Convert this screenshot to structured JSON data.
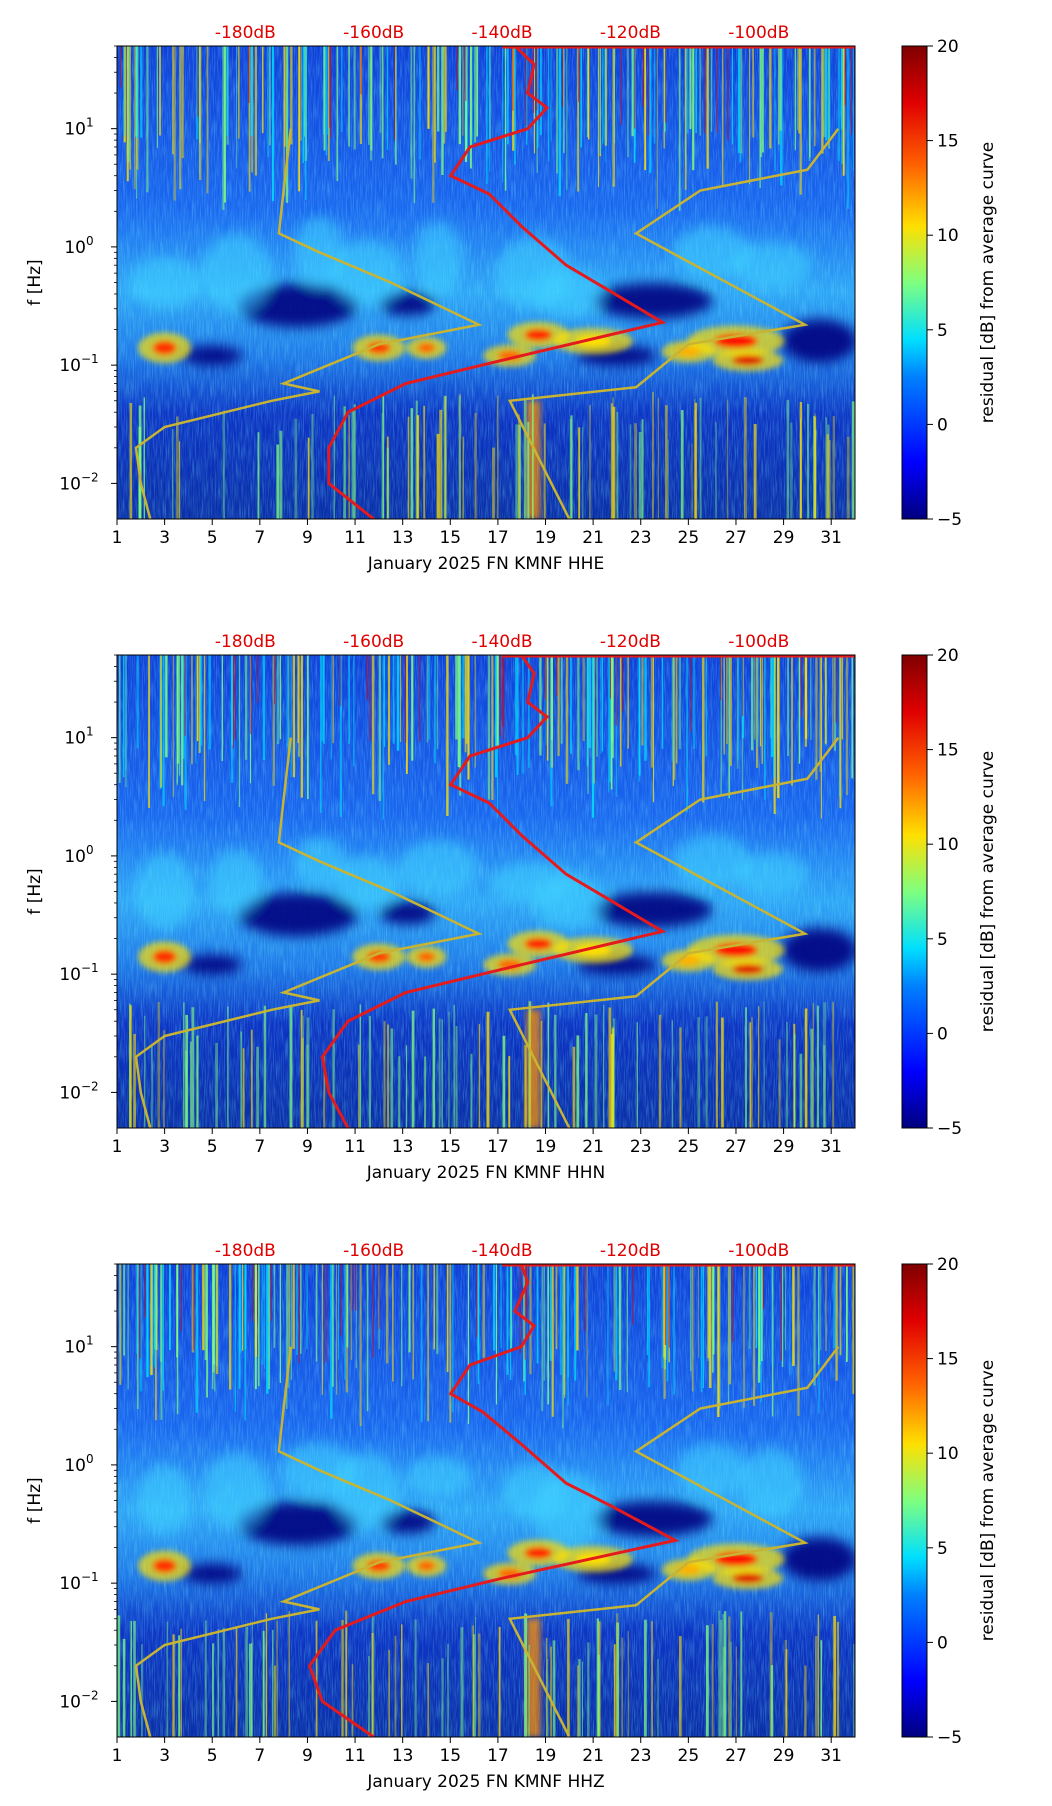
{
  "chart_data": [
    {
      "type": "heatmap",
      "xlabel": "January 2025 FN KMNF  HHE",
      "ylabel": "f [Hz]",
      "colorbar_label": "residual [dB] from average curve",
      "xlim": [
        1,
        32
      ],
      "ylim_log": [
        0.005,
        50
      ],
      "clim": [
        -5,
        20
      ],
      "x_ticks": [
        "1",
        "3",
        "5",
        "7",
        "9",
        "11",
        "13",
        "15",
        "17",
        "19",
        "21",
        "23",
        "25",
        "27",
        "29",
        "31"
      ],
      "y_ticks": [
        "10^-2",
        "10^-1",
        "10^0",
        "10^1"
      ],
      "db_ticks": [
        "-180dB",
        "-160dB",
        "-140dB",
        "-120dB",
        "-100dB"
      ],
      "colorbar_ticks": [
        "−5",
        "0",
        "5",
        "10",
        "15",
        "20"
      ],
      "scale": "log-frequency",
      "colormap": "jet",
      "series": [
        {
          "color": "#e41a1c",
          "db": [
            -138,
            -135,
            -136,
            -133,
            -136,
            -145,
            -148,
            -142,
            -137,
            -130,
            -124,
            -115,
            -140,
            -155,
            -164,
            -167,
            -167,
            -160
          ],
          "f": [
            50,
            35,
            20,
            15,
            10,
            7,
            4,
            2.8,
            1.5,
            0.7,
            0.45,
            0.23,
            0.11,
            0.07,
            0.04,
            0.02,
            0.01,
            0.005
          ]
        },
        {
          "color": "#c8b432",
          "day": [
            8.3,
            8.0,
            7.8,
            9.5,
            12.5,
            16.2,
            12,
            8.0,
            9.5,
            7.5,
            3.0,
            1.8,
            2.0,
            2.4
          ],
          "f": [
            10,
            3,
            1.3,
            0.9,
            0.5,
            0.22,
            0.15,
            0.07,
            0.06,
            0.05,
            0.03,
            0.02,
            0.01,
            0.005
          ]
        },
        {
          "color": "#c8b432",
          "day": [
            31.3,
            30,
            25.5,
            22.8,
            29.9,
            25,
            22.8,
            17.5,
            20
          ],
          "f": [
            10,
            4.5,
            3,
            1.3,
            0.22,
            0.15,
            0.065,
            0.05,
            0.005
          ]
        }
      ]
    },
    {
      "type": "heatmap",
      "xlabel": "January 2025 FN KMNF  HHN",
      "ylabel": "f [Hz]",
      "colorbar_label": "residual [dB] from average curve",
      "xlim": [
        1,
        32
      ],
      "ylim_log": [
        0.005,
        50
      ],
      "clim": [
        -5,
        20
      ],
      "x_ticks": [
        "1",
        "3",
        "5",
        "7",
        "9",
        "11",
        "13",
        "15",
        "17",
        "19",
        "21",
        "23",
        "25",
        "27",
        "29",
        "31"
      ],
      "y_ticks": [
        "10^-2",
        "10^-1",
        "10^0",
        "10^1"
      ],
      "db_ticks": [
        "-180dB",
        "-160dB",
        "-140dB",
        "-120dB",
        "-100dB"
      ],
      "colorbar_ticks": [
        "−5",
        "0",
        "5",
        "10",
        "15",
        "20"
      ],
      "scale": "log-frequency",
      "colormap": "jet",
      "series": [
        {
          "color": "#e41a1c",
          "db": [
            -137,
            -135,
            -136,
            -133,
            -136,
            -145,
            -148,
            -142,
            -137,
            -130,
            -124,
            -115,
            -140,
            -155,
            -164,
            -168,
            -167,
            -164
          ],
          "f": [
            50,
            35,
            20,
            15,
            10,
            7,
            4,
            2.8,
            1.5,
            0.7,
            0.45,
            0.23,
            0.11,
            0.07,
            0.04,
            0.02,
            0.01,
            0.005
          ]
        },
        {
          "color": "#c8b432",
          "day": [
            8.3,
            8.0,
            7.8,
            9.5,
            12.5,
            16.2,
            12,
            8.0,
            9.5,
            7.5,
            3.0,
            1.8,
            2.0,
            2.4
          ],
          "f": [
            10,
            3,
            1.3,
            0.9,
            0.5,
            0.22,
            0.15,
            0.07,
            0.06,
            0.05,
            0.03,
            0.02,
            0.01,
            0.005
          ]
        },
        {
          "color": "#c8b432",
          "day": [
            31.3,
            30,
            25.5,
            22.8,
            29.9,
            25,
            22.8,
            17.5,
            20
          ],
          "f": [
            10,
            4.5,
            3,
            1.3,
            0.22,
            0.15,
            0.065,
            0.05,
            0.005
          ]
        }
      ]
    },
    {
      "type": "heatmap",
      "xlabel": "January 2025 FN KMNF  HHZ",
      "ylabel": "f [Hz]",
      "colorbar_label": "residual [dB] from average curve",
      "xlim": [
        1,
        32
      ],
      "ylim_log": [
        0.005,
        50
      ],
      "clim": [
        -5,
        20
      ],
      "x_ticks": [
        "1",
        "3",
        "5",
        "7",
        "9",
        "11",
        "13",
        "15",
        "17",
        "19",
        "21",
        "23",
        "25",
        "27",
        "29",
        "31"
      ],
      "y_ticks": [
        "10^-2",
        "10^-1",
        "10^0",
        "10^1"
      ],
      "db_ticks": [
        "-180dB",
        "-160dB",
        "-140dB",
        "-120dB",
        "-100dB"
      ],
      "colorbar_ticks": [
        "−5",
        "0",
        "5",
        "10",
        "15",
        "20"
      ],
      "scale": "log-frequency",
      "colormap": "jet",
      "series": [
        {
          "color": "#e41a1c",
          "db": [
            -137,
            -136,
            -138,
            -135,
            -137,
            -145,
            -148,
            -143,
            -137,
            -130,
            -123,
            -113,
            -140,
            -155,
            -166,
            -170,
            -168,
            -160
          ],
          "f": [
            50,
            35,
            20,
            15,
            10,
            7,
            4,
            2.8,
            1.5,
            0.7,
            0.45,
            0.23,
            0.11,
            0.07,
            0.04,
            0.02,
            0.01,
            0.005
          ]
        },
        {
          "color": "#c8b432",
          "day": [
            8.3,
            8.0,
            7.8,
            9.5,
            12.5,
            16.2,
            12,
            8.0,
            9.5,
            7.5,
            3.0,
            1.8,
            2.0,
            2.4
          ],
          "f": [
            10,
            3,
            1.3,
            0.9,
            0.5,
            0.22,
            0.15,
            0.07,
            0.06,
            0.05,
            0.03,
            0.02,
            0.01,
            0.005
          ]
        },
        {
          "color": "#c8b432",
          "day": [
            31.3,
            30,
            25.5,
            22.8,
            29.9,
            25,
            22.8,
            17.5,
            20
          ],
          "f": [
            10,
            4.5,
            3,
            1.3,
            0.22,
            0.15,
            0.065,
            0.05,
            0.005
          ]
        }
      ]
    }
  ]
}
